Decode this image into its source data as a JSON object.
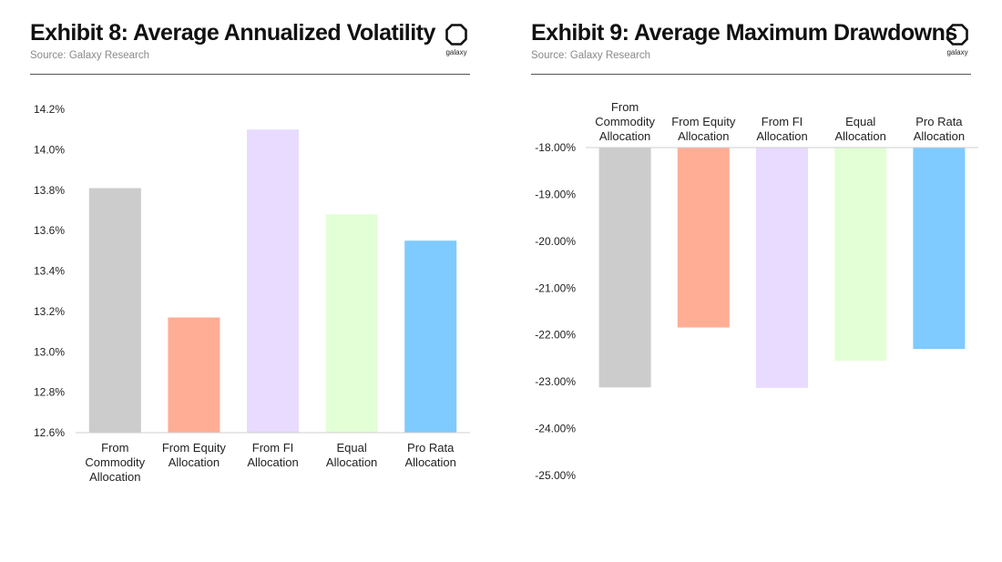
{
  "exhibit8": {
    "title": "Exhibit 8: Average Annualized Volatility",
    "source": "Source: Galaxy Research",
    "logo_text": "galaxy"
  },
  "exhibit9": {
    "title": "Exhibit 9: Average Maximum Drawdowns",
    "source": "Source: Galaxy Research",
    "logo_text": "galaxy"
  },
  "chart_data": [
    {
      "type": "bar",
      "title": "Exhibit 8: Average Annualized Volatility",
      "categories": [
        "From Commodity Allocation",
        "From Equity Allocation",
        "From FI Allocation",
        "Equal Allocation",
        "Pro Rata Allocation"
      ],
      "category_lines": [
        [
          "From",
          "Commodity",
          "Allocation"
        ],
        [
          "From Equity",
          "Allocation"
        ],
        [
          "From FI",
          "Allocation"
        ],
        [
          "Equal",
          "Allocation"
        ],
        [
          "Pro Rata",
          "Allocation"
        ]
      ],
      "values": [
        13.81,
        13.17,
        14.1,
        13.68,
        13.55
      ],
      "colors": [
        "#cccccc",
        "#ffad94",
        "#e8dbff",
        "#e2ffd6",
        "#7fcaff"
      ],
      "ylim": [
        12.6,
        14.2
      ],
      "yticks": [
        14.2,
        14.0,
        13.8,
        13.6,
        13.4,
        13.2,
        13.0,
        12.8,
        12.6
      ],
      "ytick_labels": [
        "14.2%",
        "14.0%",
        "13.8%",
        "13.6%",
        "13.4%",
        "13.2%",
        "13.0%",
        "12.8%",
        "12.6%"
      ],
      "xlabel": "",
      "ylabel": "",
      "grid": false,
      "legend": "none"
    },
    {
      "type": "bar",
      "title": "Exhibit 9: Average Maximum Drawdowns",
      "categories": [
        "From Commodity Allocation",
        "From Equity Allocation",
        "From FI Allocation",
        "Equal Allocation",
        "Pro Rata Allocation"
      ],
      "category_lines": [
        [
          "From",
          "Commodity",
          "Allocation"
        ],
        [
          "From Equity",
          "Allocation"
        ],
        [
          "From FI",
          "Allocation"
        ],
        [
          "Equal",
          "Allocation"
        ],
        [
          "Pro Rata",
          "Allocation"
        ]
      ],
      "values": [
        -23.12,
        -21.84,
        -23.13,
        -22.55,
        -22.3
      ],
      "colors": [
        "#cccccc",
        "#ffad94",
        "#e8dbff",
        "#e2ffd6",
        "#7fcaff"
      ],
      "ylim": [
        -25.0,
        -18.0
      ],
      "yticks": [
        -18,
        -19,
        -20,
        -21,
        -22,
        -23,
        -24,
        -25
      ],
      "ytick_labels": [
        "-18.00%",
        "-19.00%",
        "-20.00%",
        "-21.00%",
        "-22.00%",
        "-23.00%",
        "-24.00%",
        "-25.00%"
      ],
      "xlabel": "",
      "ylabel": "",
      "grid": false,
      "legend": "none",
      "category_axis": "top"
    }
  ]
}
